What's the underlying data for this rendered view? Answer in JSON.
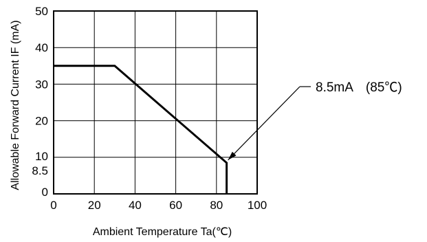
{
  "chart_data": {
    "type": "line",
    "xlabel": "Ambient Temperature Ta(℃)",
    "ylabel": "Allowable Forward Current IF (mA)",
    "xlim": [
      0,
      100
    ],
    "ylim": [
      0,
      50
    ],
    "x_ticks": [
      "0",
      "20",
      "40",
      "60",
      "80",
      "100"
    ],
    "y_ticks": [
      "0",
      "8.5",
      "10",
      "20",
      "30",
      "40",
      "50"
    ],
    "x_tick_values": [
      0,
      20,
      40,
      60,
      80,
      100
    ],
    "y_tick_values": [
      0,
      8.5,
      10,
      20,
      30,
      40,
      50
    ],
    "grid": true,
    "series": [
      {
        "x": [
          0,
          30,
          85,
          85
        ],
        "y": [
          35,
          35,
          8.5,
          0
        ]
      }
    ],
    "annotation": {
      "text": "8.5mA　(85℃)",
      "x": 85,
      "y": 8.5
    }
  }
}
